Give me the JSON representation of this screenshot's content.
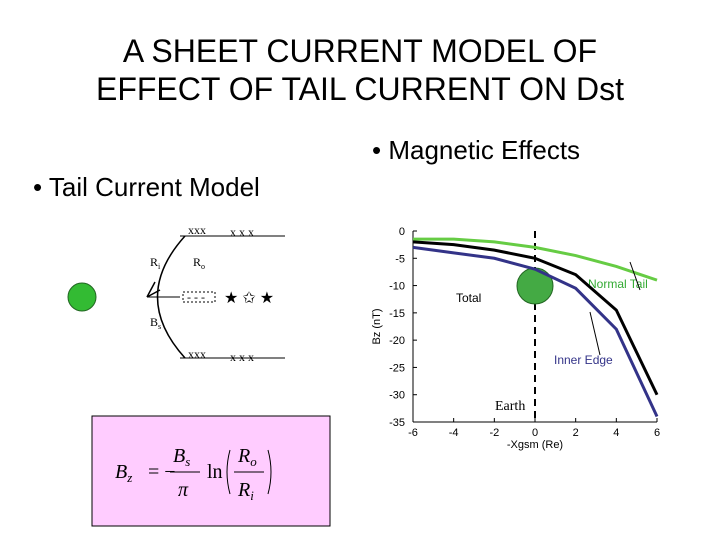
{
  "header": {
    "title_line1": "A SHEET CURRENT MODEL OF",
    "title_line2": "EFFECT OF TAIL CURRENT ON Dst"
  },
  "bullets": {
    "magnetic": "• Magnetic Effects",
    "tail": "• Tail Current Model"
  },
  "diagram": {
    "top_row": "xxx",
    "top_x": "x  x  x",
    "ri": {
      "main": "R",
      "sub": "i"
    },
    "ro": {
      "main": "R",
      "sub": "o"
    },
    "mid_row": "- - -",
    "bs": {
      "main": "B",
      "sub": "s"
    },
    "bottom_row": "xxx",
    "bottom_x": "x  x  x"
  },
  "formula": {
    "lhs": "B",
    "lhs_sub": "z",
    "eq": "= −",
    "num": "B",
    "num_sub": "s",
    "den": "π",
    "ln": "ln",
    "onum": "R",
    "onum_sub": "o",
    "oden": "R",
    "oden_sub": "i"
  },
  "chart_data": {
    "type": "line",
    "x_label": "-Xgsm (Re)",
    "y_label": "Bz (nT)",
    "earth_label": "Earth",
    "x": [
      -6,
      -4,
      -2,
      0,
      2,
      4,
      6
    ],
    "series": [
      {
        "name": "Normal Tail",
        "color": "#66cc44",
        "values": [
          -1.5,
          -1.5,
          -2,
          -3,
          -4.5,
          -6.5,
          -9
        ]
      },
      {
        "name": "Total",
        "color": "#000000",
        "values": [
          -2,
          -2.5,
          -3.5,
          -5,
          -8,
          -14.5,
          -30
        ]
      },
      {
        "name": "Inner Edge",
        "color": "#333388",
        "values": [
          -3,
          -4,
          -5,
          -7,
          -10.5,
          -18,
          -34
        ]
      }
    ],
    "xlim": [
      -6,
      6
    ],
    "ylim": [
      -35,
      0
    ],
    "xticks": [
      -6,
      -4,
      -2,
      0,
      2,
      4,
      6
    ],
    "yticks": [
      0,
      -5,
      -10,
      -15,
      -20,
      -25,
      -30,
      -35
    ]
  }
}
